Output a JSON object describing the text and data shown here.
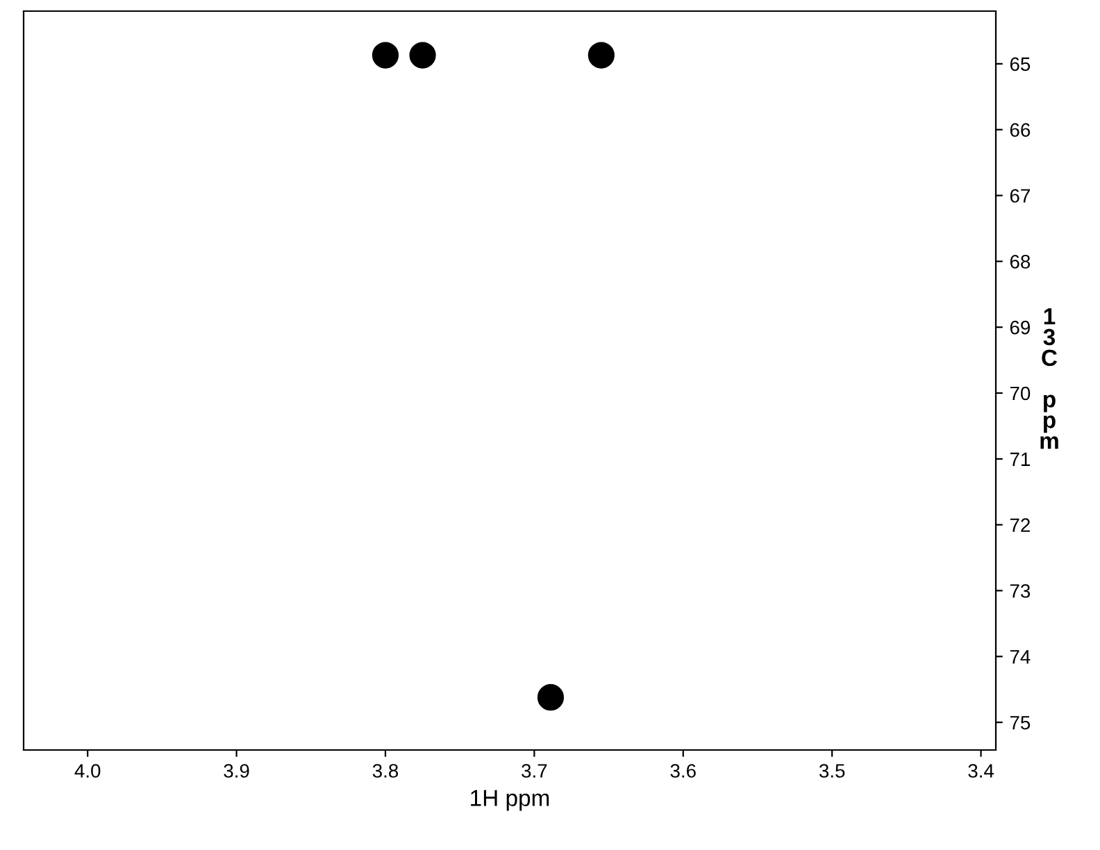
{
  "chart_data": {
    "type": "scatter",
    "xlabel": "1H ppm",
    "ylabel": "13C ppm",
    "x": [
      3.8,
      3.775,
      3.655,
      3.689
    ],
    "series": [
      {
        "color": "#000000",
        "values": [
          64.87,
          64.87,
          64.87,
          74.62
        ]
      }
    ],
    "xlim": [
      4.043,
      3.39
    ],
    "ylim": [
      75.42,
      64.2
    ],
    "xticks": [
      {
        "value": 4.0,
        "label": "4.0"
      },
      3.9,
      3.8,
      3.7,
      3.6,
      3.5,
      3.4
    ],
    "yticks": [
      65,
      66,
      67,
      68,
      69,
      70,
      71,
      72,
      73,
      74,
      75
    ],
    "marker": "circle",
    "grid": false,
    "legend": false
  }
}
